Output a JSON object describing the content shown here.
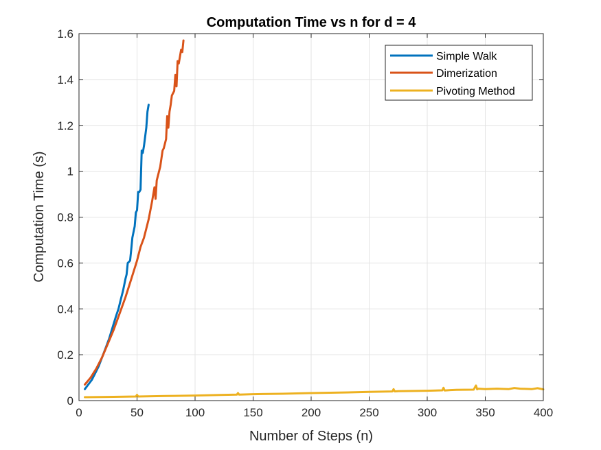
{
  "chart_data": {
    "type": "line",
    "title": "Computation Time vs n for d = 4",
    "xlabel": "Number of Steps (n)",
    "ylabel": "Computation Time (s)",
    "xlim": [
      0,
      400
    ],
    "ylim": [
      0,
      1.6
    ],
    "xticks": [
      0,
      50,
      100,
      150,
      200,
      250,
      300,
      350,
      400
    ],
    "yticks": [
      0,
      0.2,
      0.4,
      0.6,
      0.8,
      1,
      1.2,
      1.4,
      1.6
    ],
    "xtick_labels": [
      "0",
      "50",
      "100",
      "150",
      "200",
      "250",
      "300",
      "350",
      "400"
    ],
    "ytick_labels": [
      "0",
      "0.2",
      "0.4",
      "0.6",
      "0.8",
      "1",
      "1.2",
      "1.4",
      "1.6"
    ],
    "grid": true,
    "legend_position": "top-right",
    "series": [
      {
        "name": "Simple Walk",
        "color": "#0072BD",
        "x": [
          5,
          8,
          11,
          14,
          17,
          20,
          23,
          26,
          29,
          32,
          34,
          36,
          38,
          40,
          41,
          42,
          44,
          45,
          46,
          48,
          49,
          50,
          51,
          52,
          53,
          54,
          55,
          56,
          57,
          58,
          59,
          60
        ],
        "y": [
          0.05,
          0.07,
          0.09,
          0.12,
          0.15,
          0.19,
          0.23,
          0.27,
          0.32,
          0.37,
          0.4,
          0.44,
          0.48,
          0.53,
          0.55,
          0.6,
          0.61,
          0.66,
          0.71,
          0.76,
          0.82,
          0.83,
          0.91,
          0.91,
          0.92,
          1.09,
          1.08,
          1.11,
          1.15,
          1.19,
          1.26,
          1.29
        ]
      },
      {
        "name": "Dimerization",
        "color": "#D95319",
        "x": [
          5,
          10,
          15,
          20,
          25,
          30,
          35,
          40,
          45,
          50,
          53,
          56,
          58,
          60,
          63,
          65,
          66,
          67,
          68,
          70,
          72,
          73,
          75,
          76,
          77,
          78,
          79,
          80,
          82,
          83,
          84,
          85,
          86,
          87,
          88,
          89,
          90
        ],
        "y": [
          0.07,
          0.1,
          0.14,
          0.19,
          0.25,
          0.31,
          0.38,
          0.45,
          0.53,
          0.61,
          0.67,
          0.71,
          0.75,
          0.79,
          0.87,
          0.93,
          0.88,
          0.96,
          0.98,
          1.02,
          1.09,
          1.1,
          1.14,
          1.24,
          1.19,
          1.26,
          1.29,
          1.33,
          1.35,
          1.42,
          1.37,
          1.48,
          1.47,
          1.5,
          1.53,
          1.52,
          1.57
        ]
      },
      {
        "name": "Pivoting Method",
        "color": "#EDB120",
        "x": [
          5,
          25,
          49,
          50,
          51,
          75,
          100,
          125,
          136,
          137,
          138,
          150,
          175,
          200,
          225,
          250,
          270,
          271,
          272,
          275,
          300,
          313,
          314,
          315,
          320,
          325,
          340,
          342,
          343,
          344,
          350,
          360,
          370,
          375,
          380,
          390,
          395,
          400
        ],
        "y": [
          0.015,
          0.016,
          0.018,
          0.025,
          0.018,
          0.02,
          0.022,
          0.025,
          0.026,
          0.033,
          0.026,
          0.028,
          0.03,
          0.033,
          0.035,
          0.038,
          0.04,
          0.05,
          0.04,
          0.041,
          0.043,
          0.045,
          0.056,
          0.044,
          0.046,
          0.047,
          0.048,
          0.066,
          0.049,
          0.052,
          0.05,
          0.052,
          0.05,
          0.055,
          0.052,
          0.05,
          0.054,
          0.049
        ]
      }
    ]
  }
}
